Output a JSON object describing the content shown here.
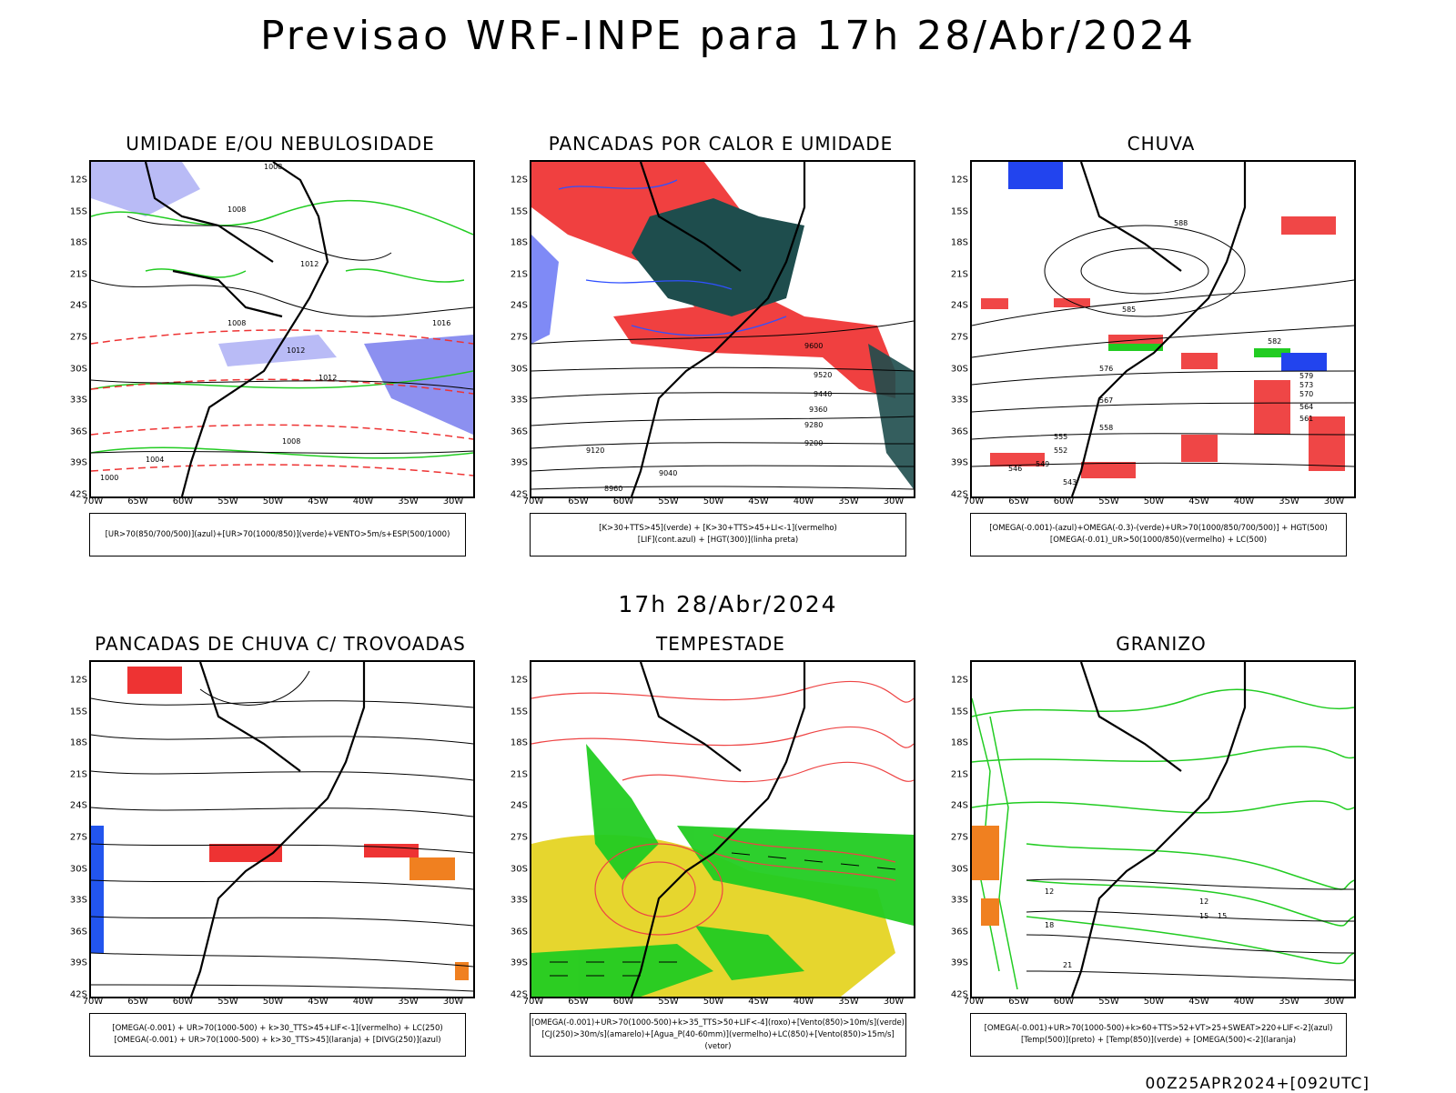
{
  "header": {
    "title": "Previsao WRF-INPE  para 17h 28/Abr/2024",
    "mid_date": "17h 28/Abr/2024",
    "footer_stamp": "00Z25APR2024+[092UTC]"
  },
  "axes": {
    "lat_ticks": [
      "12S",
      "15S",
      "18S",
      "21S",
      "24S",
      "27S",
      "30S",
      "33S",
      "36S",
      "39S",
      "42S"
    ],
    "lon_ticks": [
      "70W",
      "65W",
      "60W",
      "55W",
      "50W",
      "45W",
      "40W",
      "35W",
      "30W"
    ]
  },
  "panels": [
    {
      "id": "umidade",
      "title": "UMIDADE E/OU NEBULOSIDADE",
      "legend_lines": [
        "[UR>70(850/700/500)](azul)+[UR>70(1000/850)](verde)+VENTO>5m/s+ESP(500/1000)"
      ],
      "contour_labels": [
        "1008",
        "1012",
        "1008",
        "1008",
        "1012",
        "1016",
        "1012",
        "1008",
        "1004",
        "1000"
      ],
      "colors": {
        "blue": "#8b8ef0",
        "green": "#2ecc2e",
        "red": "#ee3333"
      }
    },
    {
      "id": "pancadas-calor",
      "title": "PANCADAS POR CALOR E UMIDADE",
      "legend_lines": [
        "[K>30+TTS>45](verde) + [K>30+TTS>45+LI<-1](vermelho)",
        "[LIF](cont.azul) + [HGT(300)](linha preta)"
      ],
      "contour_labels": [
        "9600",
        "9520",
        "9440",
        "9360",
        "9280",
        "9200",
        "9120",
        "9040",
        "8960"
      ],
      "colors": {
        "red": "#f04040",
        "teal": "#1e4d4d",
        "blue": "#3050ff"
      }
    },
    {
      "id": "chuva",
      "title": "CHUVA",
      "legend_lines": [
        "[OMEGA(-0.001)-(azul)+OMEGA(-0.3)-(verde)+UR>70(1000/850/700/500)] + HGT(500)",
        "[OMEGA(-0.01)_UR>50(1000/850)(vermelho) + LC(500)"
      ],
      "contour_labels": [
        "588",
        "585",
        "582",
        "579",
        "576",
        "573",
        "570",
        "567",
        "564",
        "561",
        "558",
        "555",
        "552",
        "549",
        "546",
        "543"
      ],
      "colors": {
        "red": "#ee3333",
        "green": "#22cc22",
        "blue": "#2244ee"
      }
    },
    {
      "id": "trovoadas",
      "title": "PANCADAS DE CHUVA C/ TROVOADAS",
      "legend_lines": [
        "[OMEGA(-0.001) + UR>70(1000-500) + k>30_TTS>45+LIF<-1](vermelho) + LC(250)",
        "[OMEGA(-0.001) + UR>70(1000-500) + k>30_TTS>45](laranja) + [DIVG(250)](azul)"
      ],
      "contour_labels": [],
      "colors": {
        "red": "#ee3333",
        "orange": "#f08020",
        "blue": "#2255ee"
      }
    },
    {
      "id": "tempestade",
      "title": "TEMPESTADE",
      "legend_lines": [
        "[OMEGA(-0.001)+UR>70(1000-500)+k>35_TTS>50+LIF<-4](roxo)+[Vento(850)>10m/s](verde)",
        "[CJ(250)>30m/s](amarelo)+[Agua_P(40-60mm)](vermelho)+LC(850)+[Vento(850)>15m/s](vetor)"
      ],
      "contour_labels": [],
      "colors": {
        "yellow": "#e6d62e",
        "green": "#22cc22",
        "red": "#ee4444"
      }
    },
    {
      "id": "granizo",
      "title": "GRANIZO",
      "legend_lines": [
        "[OMEGA(-0.001)+UR>70(1000-500)+k>60+TTS>52+VT>25+SWEAT>220+LIF<-2](azul)",
        "[Temp(500)](preto) + [Temp(850)](verde) + [OMEGA(500)<-2](laranja)"
      ],
      "contour_labels": [
        "12",
        "15",
        "18",
        "21",
        "15",
        "12"
      ],
      "colors": {
        "green": "#22cc22",
        "orange": "#f08020"
      }
    }
  ]
}
